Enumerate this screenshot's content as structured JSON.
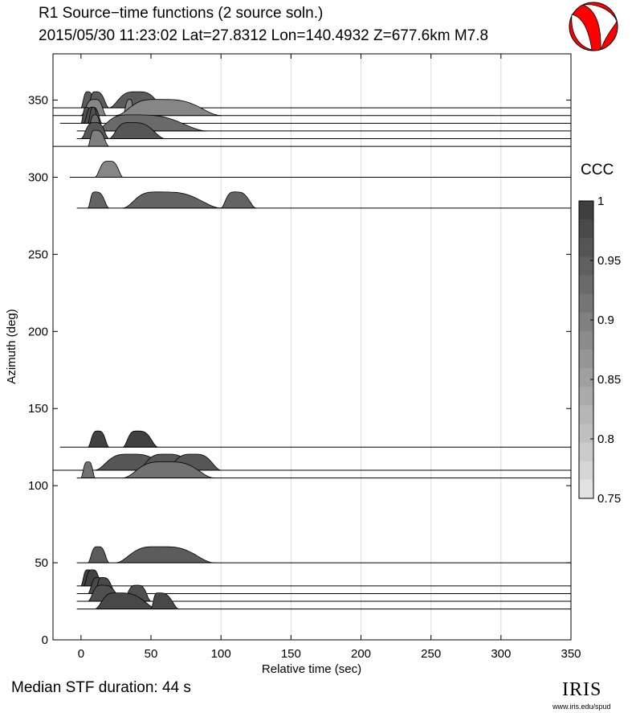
{
  "title": {
    "line1": "R1 Source−time functions (2 source soln.)",
    "line2": "2015/05/30 11:23:02  Lat=27.8312 Lon=140.4932  Z=677.6km  M7.8"
  },
  "footer": {
    "median_text": "Median STF duration: 44 s"
  },
  "logo": {
    "word": "IRIS",
    "url": "www.iris.edu/spud"
  },
  "colors": {
    "beachball_red": "#ff0000",
    "grid": "#dddddd",
    "fill_dark": "#3a3a3a",
    "fill_light": "#e6e6e6"
  },
  "chart_data": {
    "type": "area",
    "xlabel": "Relative time (sec)",
    "ylabel": "Azimuth (deg)",
    "xlim": [
      -20,
      350
    ],
    "ylim": [
      0,
      380
    ],
    "xticks": [
      0,
      50,
      100,
      150,
      200,
      250,
      300,
      350
    ],
    "yticks": [
      0,
      50,
      100,
      150,
      200,
      250,
      300,
      350
    ],
    "colorbar": {
      "label": "CCC",
      "min": 0.75,
      "max": 1.0,
      "ticks": [
        "1",
        "0.95",
        "0.9",
        "0.85",
        "0.8",
        "0.75"
      ],
      "tick_values": [
        1.0,
        0.95,
        0.9,
        0.85,
        0.8,
        0.75
      ]
    },
    "traces": [
      {
        "azimuth": 345,
        "start": -20,
        "ccc": 0.95,
        "pulses": [
          [
            0,
            5,
            10
          ],
          [
            5,
            10,
            20
          ],
          [
            20,
            40,
            60
          ]
        ]
      },
      {
        "azimuth": 340,
        "start": -20,
        "ccc": 0.89,
        "pulses": [
          [
            0,
            10,
            18
          ],
          [
            30,
            35,
            38
          ],
          [
            25,
            55,
            100
          ]
        ]
      },
      {
        "azimuth": 335,
        "start": -15,
        "ccc": 0.97,
        "pulses": [
          [
            0,
            4,
            8
          ],
          [
            2,
            8,
            15
          ],
          [
            5,
            9,
            12
          ]
        ]
      },
      {
        "azimuth": 330,
        "start": -3,
        "ccc": 0.93,
        "pulses": [
          [
            5,
            10,
            15
          ],
          [
            10,
            35,
            90
          ]
        ]
      },
      {
        "azimuth": 325,
        "start": -3,
        "ccc": 0.96,
        "pulses": [
          [
            0,
            10,
            20
          ],
          [
            20,
            35,
            60
          ]
        ]
      },
      {
        "azimuth": 320,
        "start": -20,
        "ccc": 0.9,
        "pulses": [
          [
            5,
            10,
            20
          ]
        ]
      },
      {
        "azimuth": 300,
        "start": -8,
        "ccc": 0.89,
        "pulses": [
          [
            10,
            20,
            30
          ]
        ]
      },
      {
        "azimuth": 280,
        "start": -3,
        "ccc": 0.94,
        "pulses": [
          [
            5,
            10,
            20
          ],
          [
            30,
            55,
            100
          ],
          [
            100,
            110,
            125
          ]
        ]
      },
      {
        "azimuth": 125,
        "start": -15,
        "ccc": 0.99,
        "pulses": [
          [
            5,
            12,
            20
          ],
          [
            30,
            40,
            55
          ]
        ]
      },
      {
        "azimuth": 110,
        "start": -20,
        "ccc": 0.96,
        "pulses": [
          [
            10,
            35,
            65
          ],
          [
            40,
            60,
            85
          ],
          [
            60,
            80,
            100
          ]
        ]
      },
      {
        "azimuth": 105,
        "start": -3,
        "ccc": 0.92,
        "pulses": [
          [
            0,
            5,
            10
          ],
          [
            30,
            60,
            95
          ]
        ]
      },
      {
        "azimuth": 50,
        "start": -3,
        "ccc": 0.95,
        "pulses": [
          [
            5,
            12,
            20
          ],
          [
            25,
            55,
            95
          ]
        ]
      },
      {
        "azimuth": 35,
        "start": -3,
        "ccc": 0.99,
        "pulses": [
          [
            0,
            5,
            10
          ],
          [
            2,
            8,
            15
          ]
        ]
      },
      {
        "azimuth": 30,
        "start": -3,
        "ccc": 0.98,
        "pulses": [
          [
            5,
            12,
            20
          ],
          [
            10,
            15,
            25
          ]
        ]
      },
      {
        "azimuth": 25,
        "start": -3,
        "ccc": 0.97,
        "pulses": [
          [
            5,
            15,
            30
          ],
          [
            30,
            40,
            50
          ]
        ]
      },
      {
        "azimuth": 20,
        "start": -3,
        "ccc": 0.98,
        "pulses": [
          [
            10,
            25,
            55
          ],
          [
            50,
            55,
            70
          ]
        ]
      }
    ]
  }
}
